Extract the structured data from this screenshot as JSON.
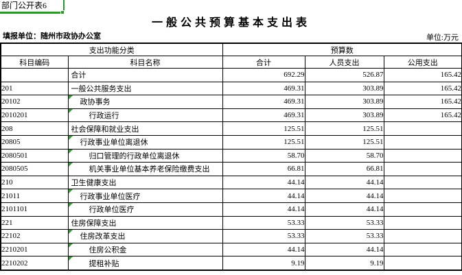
{
  "sheet": {
    "corner_cell_label": "部门公开表6",
    "title": "一般公共预算基本支出表",
    "report_unit": "填报单位：随州市政协办公室",
    "unit_note": "单位:万元"
  },
  "colors": {
    "selection_green": "#1ca31c",
    "marker_green": "#2f9e2f",
    "border_black": "#000000"
  },
  "table": {
    "group_headers": [
      "支出功能分类",
      "预算数"
    ],
    "columns": [
      "科目编码",
      "科目名称",
      "合计",
      "人员支出",
      "公用支出"
    ],
    "rows": [
      {
        "code": "",
        "name": "合计",
        "indent": 0,
        "marker": false,
        "total": "692.29",
        "personnel": "526.87",
        "public": "165.42"
      },
      {
        "code": "201",
        "name": "一般公共服务支出",
        "indent": 0,
        "marker": false,
        "total": "469.31",
        "personnel": "303.89",
        "public": "165.42"
      },
      {
        "code": "20102",
        "name": "政协事务",
        "indent": 1,
        "marker": true,
        "total": "469.31",
        "personnel": "303.89",
        "public": "165.42"
      },
      {
        "code": "2010201",
        "name": "行政运行",
        "indent": 2,
        "marker": true,
        "total": "469.31",
        "personnel": "303.89",
        "public": "165.42"
      },
      {
        "code": "208",
        "name": "社会保障和就业支出",
        "indent": 0,
        "marker": false,
        "total": "125.51",
        "personnel": "125.51",
        "public": ""
      },
      {
        "code": "20805",
        "name": "行政事业单位离退休",
        "indent": 1,
        "marker": true,
        "total": "125.51",
        "personnel": "125.51",
        "public": ""
      },
      {
        "code": "2080501",
        "name": "归口管理的行政单位离退休",
        "indent": 2,
        "marker": true,
        "total": "58.70",
        "personnel": "58.70",
        "public": ""
      },
      {
        "code": "2080505",
        "name": "机关事业单位基本养老保险缴费支出",
        "indent": 2,
        "marker": true,
        "total": "66.81",
        "personnel": "66.81",
        "public": ""
      },
      {
        "code": "210",
        "name": "卫生健康支出",
        "indent": 0,
        "marker": false,
        "total": "44.14",
        "personnel": "44.14",
        "public": ""
      },
      {
        "code": "21011",
        "name": "行政事业单位医疗",
        "indent": 1,
        "marker": true,
        "total": "44.14",
        "personnel": "44.14",
        "public": ""
      },
      {
        "code": "2101101",
        "name": "行政单位医疗",
        "indent": 2,
        "marker": true,
        "total": "44.14",
        "personnel": "44.14",
        "public": ""
      },
      {
        "code": "221",
        "name": "住房保障支出",
        "indent": 0,
        "marker": false,
        "total": "53.33",
        "personnel": "53.33",
        "public": ""
      },
      {
        "code": "22102",
        "name": "住房改革支出",
        "indent": 1,
        "marker": true,
        "total": "53.33",
        "personnel": "53.33",
        "public": ""
      },
      {
        "code": "2210201",
        "name": "住房公积金",
        "indent": 2,
        "marker": true,
        "total": "44.14",
        "personnel": "44.14",
        "public": ""
      },
      {
        "code": "2210202",
        "name": "提租补贴",
        "indent": 2,
        "marker": true,
        "total": "9.19",
        "personnel": "9.19",
        "public": ""
      }
    ]
  }
}
